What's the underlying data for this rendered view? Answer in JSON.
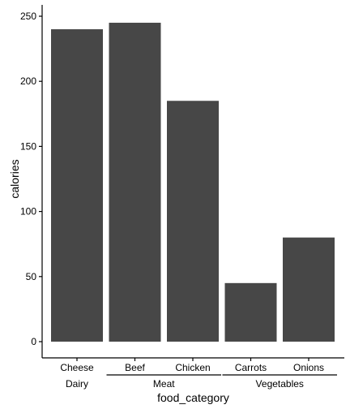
{
  "chart_data": {
    "type": "bar",
    "categories": [
      "Cheese",
      "Beef",
      "Chicken",
      "Carrots",
      "Onions"
    ],
    "groups": [
      {
        "name": "Dairy",
        "categories": [
          "Cheese"
        ]
      },
      {
        "name": "Meat",
        "categories": [
          "Beef",
          "Chicken"
        ]
      },
      {
        "name": "Vegetables",
        "categories": [
          "Carrots",
          "Onions"
        ]
      }
    ],
    "values": [
      240,
      245,
      185,
      45,
      80
    ],
    "xlabel": "food_category",
    "ylabel": "calories",
    "ylim": [
      0,
      250
    ],
    "yticks": [
      0,
      50,
      100,
      150,
      200,
      250
    ],
    "bar_color": "#474747",
    "grid": false
  }
}
